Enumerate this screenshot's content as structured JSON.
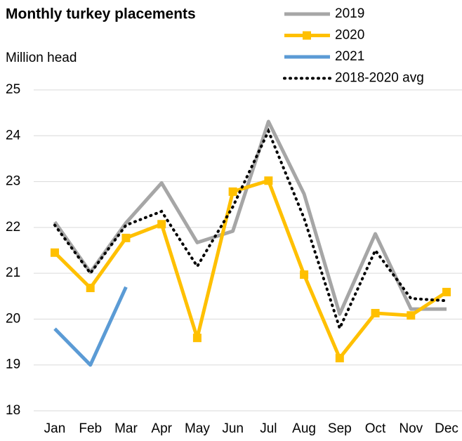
{
  "chart_data": {
    "type": "line",
    "title": "Monthly turkey placements",
    "y_axis_label": "Million head",
    "categories": [
      "Jan",
      "Feb",
      "Mar",
      "Apr",
      "May",
      "Jun",
      "Jul",
      "Aug",
      "Sep",
      "Oct",
      "Nov",
      "Dec"
    ],
    "series": [
      {
        "name": "2019",
        "color": "#a6a6a6",
        "values": [
          22.12,
          21.02,
          22.1,
          22.97,
          21.67,
          21.92,
          24.31,
          22.73,
          20.11,
          21.86,
          20.22,
          20.22
        ]
      },
      {
        "name": "2020",
        "color": "#ffc000",
        "marker": "square",
        "values": [
          21.45,
          20.68,
          21.77,
          22.07,
          19.59,
          22.78,
          23.02,
          20.97,
          19.15,
          20.13,
          20.08,
          20.59
        ]
      },
      {
        "name": "2021",
        "color": "#5b9bd5",
        "values": [
          19.79,
          19.0,
          20.7,
          null,
          null,
          null,
          null,
          null,
          null,
          null,
          null,
          null
        ]
      },
      {
        "name": "2018-2020 avg",
        "color": "#000000",
        "dash": "dotted",
        "values": [
          22.05,
          21.0,
          22.05,
          22.35,
          21.15,
          22.45,
          24.1,
          22.2,
          19.8,
          21.5,
          20.45,
          20.4
        ]
      }
    ],
    "ylim": [
      18,
      25
    ],
    "yticks": [
      18,
      19,
      20,
      21,
      22,
      23,
      24,
      25
    ],
    "grid": true
  }
}
